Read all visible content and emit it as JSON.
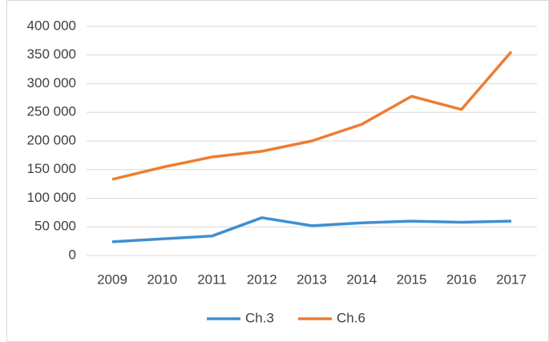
{
  "chart_data": {
    "type": "line",
    "x": [
      2009,
      2010,
      2011,
      2012,
      2013,
      2014,
      2015,
      2016,
      2017
    ],
    "xlim": [
      2009,
      2017
    ],
    "series": [
      {
        "name": "Ch.3",
        "color": "#3f8fd2",
        "values": [
          24000,
          29000,
          34000,
          66000,
          52000,
          57000,
          60000,
          58000,
          60000
        ]
      },
      {
        "name": "Ch.6",
        "color": "#ed7d31",
        "values": [
          133000,
          154000,
          172000,
          182000,
          200000,
          229000,
          278000,
          255000,
          356000
        ]
      }
    ],
    "ylim": [
      0,
      400000
    ],
    "yticks": [
      0,
      {
        "value": 50000,
        "label": "50 000"
      },
      {
        "value": 100000,
        "label": "100 000"
      },
      {
        "value": 150000,
        "label": "150 000"
      },
      {
        "value": 200000,
        "label": "200 000"
      },
      {
        "value": 250000,
        "label": "250 000"
      },
      {
        "value": 300000,
        "label": "300 000"
      },
      {
        "value": 350000,
        "label": "350 000"
      },
      {
        "value": 400000,
        "label": "400 000"
      }
    ],
    "grid": true,
    "legend": "bottom"
  }
}
